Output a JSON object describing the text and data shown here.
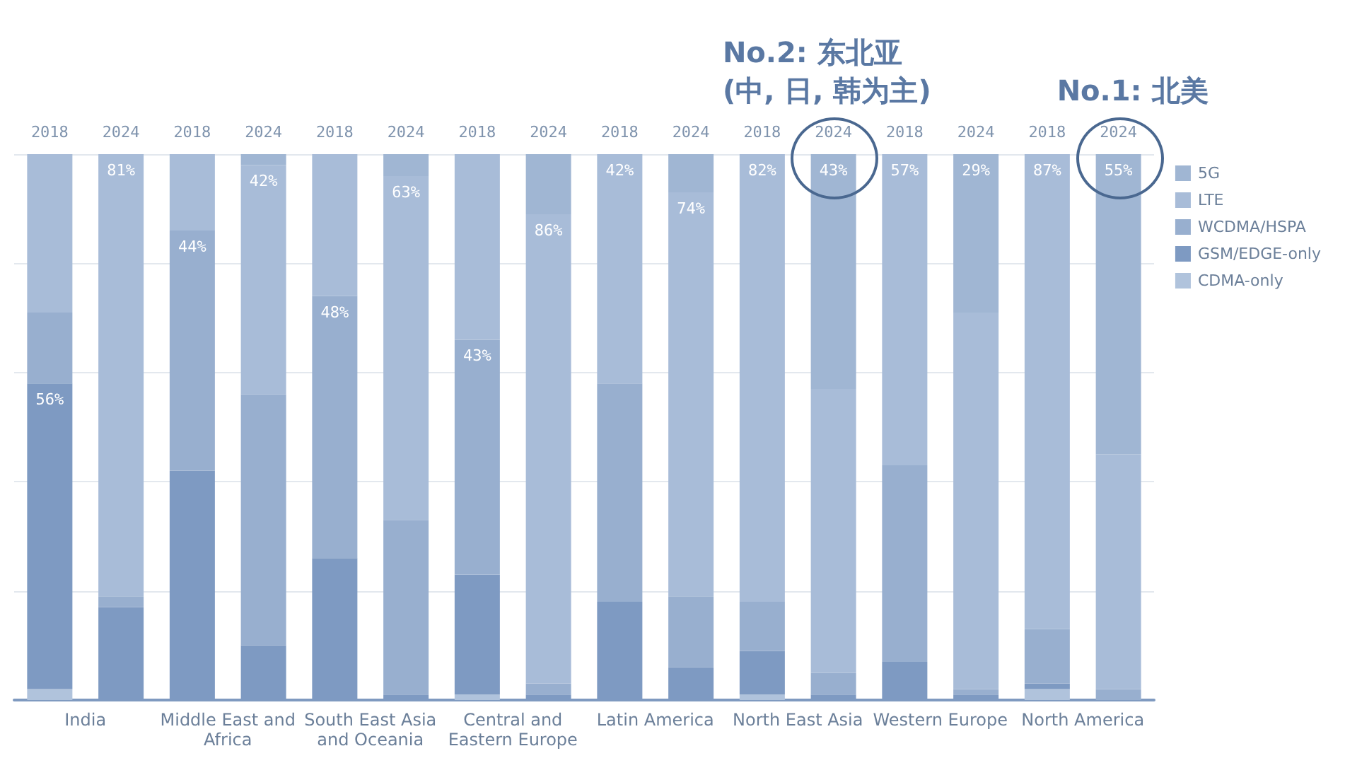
{
  "chart_data": {
    "type": "bar",
    "stacked": true,
    "grid": "y",
    "legend": "top right",
    "tick_labels": "x",
    "ylim": [
      0,
      100
    ],
    "yticks": [
      {
        "value": 0,
        "label": null
      },
      {
        "value": 20,
        "label": null
      },
      {
        "value": 40,
        "label": null
      },
      {
        "value": 60,
        "label": null
      },
      {
        "value": 80,
        "label": null
      },
      {
        "value": 100,
        "label": null
      }
    ],
    "categories": [
      "2018",
      "2024",
      "2018",
      "2024",
      "2018",
      "2024",
      "2018",
      "2024",
      "2018",
      "2024",
      "2018",
      "2024",
      "2018",
      "2024",
      "2018",
      "2024"
    ],
    "series": [
      {
        "name": "CDMA-only",
        "color": "#b0c3dc",
        "values": [
          2,
          0,
          0,
          0,
          0,
          0,
          1,
          0,
          0,
          0,
          1,
          0,
          0,
          0,
          2,
          0
        ]
      },
      {
        "name": "GSM/EDGE-only",
        "color": "#7e9ac2",
        "values": [
          56,
          17,
          42,
          10,
          26,
          1,
          22,
          1,
          18,
          6,
          8,
          1,
          7,
          1,
          1,
          0
        ],
        "value_labels": [
          "56%",
          null,
          null,
          null,
          null,
          null,
          null,
          null,
          null,
          null,
          null,
          null,
          null,
          null,
          null,
          null
        ]
      },
      {
        "name": "WCDMA/HSPA",
        "color": "#98afcf",
        "values": [
          13,
          2,
          44,
          46,
          48,
          32,
          43,
          2,
          40,
          13,
          9,
          4,
          36,
          1,
          10,
          2
        ],
        "value_labels": [
          null,
          null,
          "44%",
          null,
          "48%",
          null,
          "43%",
          null,
          null,
          null,
          null,
          null,
          null,
          null,
          null,
          null
        ]
      },
      {
        "name": "LTE",
        "color": "#a8bcd8",
        "values": [
          29,
          81,
          14,
          42,
          26,
          63,
          34,
          86,
          42,
          74,
          82,
          52,
          57,
          69,
          87,
          43
        ],
        "value_labels": [
          null,
          "81%",
          null,
          "42%",
          null,
          "63%",
          null,
          "86%",
          "42%",
          "74%",
          "82%",
          null,
          "57%",
          null,
          "87%",
          null
        ]
      },
      {
        "name": "5G",
        "color": "#a0b6d3",
        "values": [
          0,
          0,
          0,
          2,
          0,
          4,
          0,
          11,
          0,
          7,
          0,
          43,
          0,
          29,
          0,
          55
        ],
        "value_labels": [
          null,
          null,
          null,
          null,
          null,
          null,
          null,
          null,
          null,
          null,
          null,
          "43%",
          null,
          "29%",
          null,
          "55%"
        ]
      }
    ],
    "annotations": [
      "India",
      "Middle East and Africa",
      "South East Asia and Oceania",
      "Central and Eastern Europe",
      "Latin America",
      "North East Asia",
      "Western Europe",
      "North America",
      "No.2: 东北亚\n(中, 日, 韩为主)",
      "No.1: 北美"
    ]
  }
}
